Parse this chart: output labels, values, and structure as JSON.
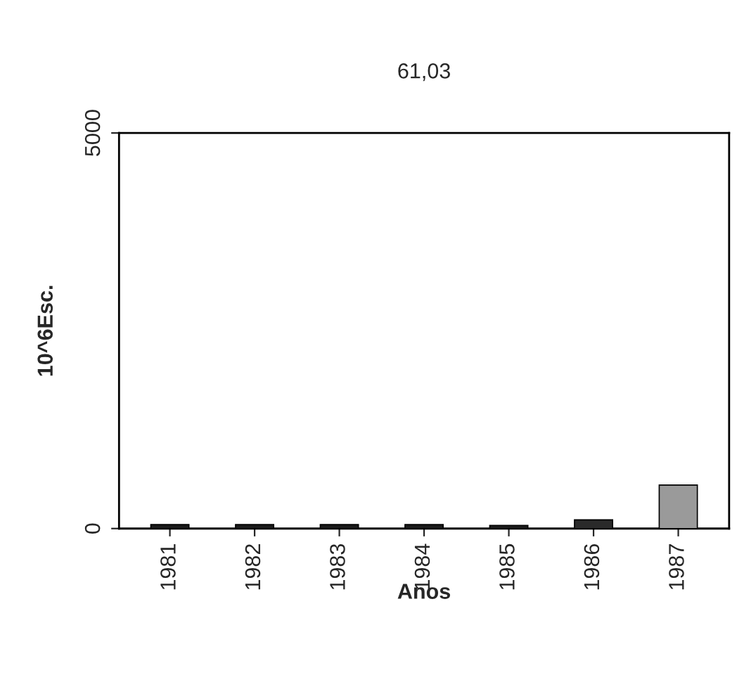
{
  "chart_data": {
    "type": "bar",
    "title": "61,03",
    "xlabel": "Anos",
    "ylabel": "10^6Esc.",
    "categories": [
      "1981",
      "1982",
      "1983",
      "1984",
      "1985",
      "1986",
      "1987"
    ],
    "values": [
      50,
      50,
      50,
      50,
      40,
      110,
      550
    ],
    "colors": [
      "#1a1a1a",
      "#1a1a1a",
      "#1a1a1a",
      "#1a1a1a",
      "#1a1a1a",
      "#2a2a2a",
      "#9a9a9a"
    ],
    "ylim": [
      0,
      5000
    ],
    "yticks": [
      0,
      5000
    ],
    "grid": false,
    "legend": false
  }
}
